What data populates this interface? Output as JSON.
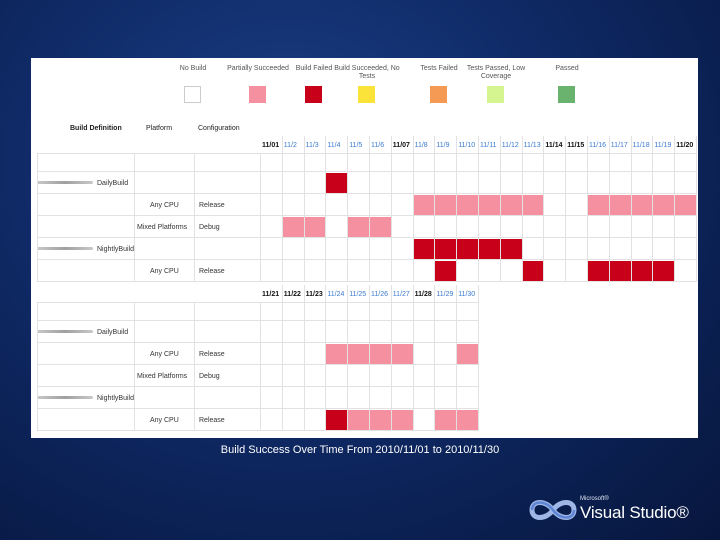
{
  "legend": [
    {
      "label": "No Build",
      "color": "#ffffff"
    },
    {
      "label": "Partially Succeeded",
      "color": "#f4909f"
    },
    {
      "label": "Build Failed",
      "color": "#c8001a"
    },
    {
      "label": "Build Succeeded, No Tests",
      "color": "#fbe33a"
    },
    {
      "label": "Tests Failed",
      "color": "#f59a55"
    },
    {
      "label": "Tests Passed, Low Coverage",
      "color": "#d5f590"
    },
    {
      "label": "Passed",
      "color": "#69b36f"
    }
  ],
  "headers": {
    "build_definition": "Build Definition",
    "platform": "Platform",
    "configuration": "Configuration"
  },
  "grid1": {
    "dates": [
      "11/01",
      "11/2",
      "11/3",
      "11/4",
      "11/5",
      "11/6",
      "11/07",
      "11/8",
      "11/9",
      "11/10",
      "11/11",
      "11/12",
      "11/13",
      "11/14",
      "11/15",
      "11/16",
      "11/17",
      "11/18",
      "11/19",
      "11/20"
    ],
    "dark_dates": [
      0,
      6,
      13,
      14,
      19
    ],
    "rows": [
      {
        "type": "def",
        "name": "DailyBuild",
        "cells": [
          null,
          null,
          null,
          "failed",
          null,
          null,
          null,
          null,
          null,
          null,
          null,
          null,
          null,
          null,
          null,
          null,
          null,
          null,
          null,
          null
        ]
      },
      {
        "type": "cfg",
        "platform": "Any CPU",
        "configuration": "Release",
        "cells": [
          null,
          null,
          null,
          null,
          null,
          null,
          null,
          "partial",
          "partial",
          "partial",
          "partial",
          "partial",
          "partial",
          null,
          null,
          "partial",
          "partial",
          "partial",
          "partial",
          "partial"
        ]
      },
      {
        "type": "cfg",
        "platform": "Mixed Platforms",
        "configuration": "Debug",
        "cells": [
          null,
          "partial",
          "partial",
          null,
          "partial",
          "partial",
          null,
          null,
          null,
          null,
          null,
          null,
          null,
          null,
          null,
          null,
          null,
          null,
          null,
          null
        ]
      },
      {
        "type": "def",
        "name": "NightlyBuild",
        "cells": [
          null,
          null,
          null,
          null,
          null,
          null,
          null,
          "failed",
          "failed",
          "failed",
          "failed",
          "failed",
          null,
          null,
          null,
          null,
          null,
          null,
          null,
          null
        ]
      },
      {
        "type": "cfg",
        "platform": "Any CPU",
        "configuration": "Release",
        "cells": [
          null,
          null,
          null,
          null,
          null,
          null,
          null,
          null,
          "failed",
          null,
          null,
          null,
          "failed",
          null,
          null,
          "failed",
          "failed",
          "failed",
          "failed",
          null
        ]
      }
    ]
  },
  "grid2": {
    "dates": [
      "11/21",
      "11/22",
      "11/23",
      "11/24",
      "11/25",
      "11/26",
      "11/27",
      "11/28",
      "11/29",
      "11/30"
    ],
    "dark_dates": [
      0,
      1,
      2,
      7
    ],
    "rows": [
      {
        "type": "def",
        "name": "DailyBuild",
        "cells": [
          null,
          null,
          null,
          null,
          null,
          null,
          null,
          null,
          null,
          null
        ]
      },
      {
        "type": "cfg",
        "platform": "Any CPU",
        "configuration": "Release",
        "cells": [
          null,
          null,
          null,
          "partial",
          "partial",
          "partial",
          "partial",
          null,
          null,
          "partial"
        ]
      },
      {
        "type": "cfg",
        "platform": "Mixed Platforms",
        "configuration": "Debug",
        "cells": [
          null,
          null,
          null,
          null,
          null,
          null,
          null,
          null,
          null,
          null
        ]
      },
      {
        "type": "def",
        "name": "NightlyBuild",
        "cells": [
          null,
          null,
          null,
          null,
          null,
          null,
          null,
          null,
          null,
          null
        ]
      },
      {
        "type": "cfg",
        "platform": "Any CPU",
        "configuration": "Release",
        "cells": [
          null,
          null,
          null,
          "failed",
          "partial",
          "partial",
          "partial",
          null,
          "partial",
          "partial"
        ]
      }
    ]
  },
  "status_colors": {
    "partial": "#f4909f",
    "failed": "#c8001a"
  },
  "caption": "Build Success Over Time From 2010/11/01 to 2010/11/30",
  "logo": {
    "microsoft": "Microsoft®",
    "product": "Visual Studio®",
    "icon": "visual-studio-infinity-logo"
  }
}
